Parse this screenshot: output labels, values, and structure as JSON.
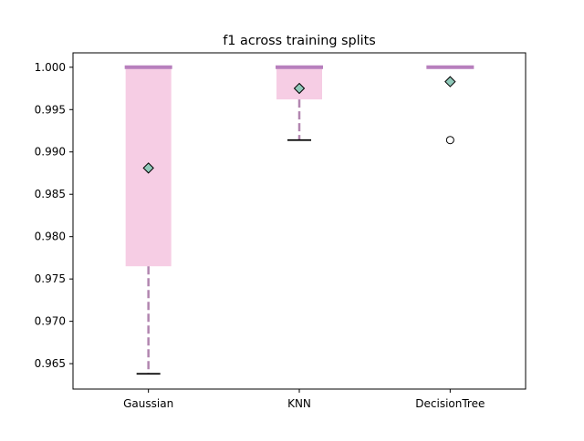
{
  "chart_data": {
    "type": "box",
    "title": "f1 across training splits",
    "xlabel": "",
    "ylabel": "",
    "categories": [
      "Gaussian",
      "KNN",
      "DecisionTree"
    ],
    "ylim": [
      0.962,
      1.0017
    ],
    "yticks": [
      0.965,
      0.97,
      0.975,
      0.98,
      0.985,
      0.99,
      0.995,
      1.0
    ],
    "ytick_labels": [
      "0.965",
      "0.970",
      "0.975",
      "0.980",
      "0.985",
      "0.990",
      "0.995",
      "1.000"
    ],
    "grid": false,
    "boxes": [
      {
        "category": "Gaussian",
        "whisker_low": 0.9638,
        "q1": 0.9765,
        "median": 1.0,
        "q3": 1.0,
        "whisker_high": 1.0,
        "mean": 0.9881,
        "fliers": []
      },
      {
        "category": "KNN",
        "whisker_low": 0.9914,
        "q1": 0.9962,
        "median": 1.0,
        "q3": 1.0,
        "whisker_high": 1.0,
        "mean": 0.9975,
        "fliers": []
      },
      {
        "category": "DecisionTree",
        "whisker_low": 1.0,
        "q1": 1.0,
        "median": 1.0,
        "q3": 1.0,
        "whisker_high": 1.0,
        "mean": 0.9983,
        "fliers": [
          0.9914
        ]
      }
    ],
    "colors": {
      "box_fill": "#f6cde4",
      "median": "#b77fbd",
      "whisker": "#b286b0",
      "cap": "#000000",
      "mean_marker": "#8fc9b9",
      "flier": "#000000"
    }
  }
}
